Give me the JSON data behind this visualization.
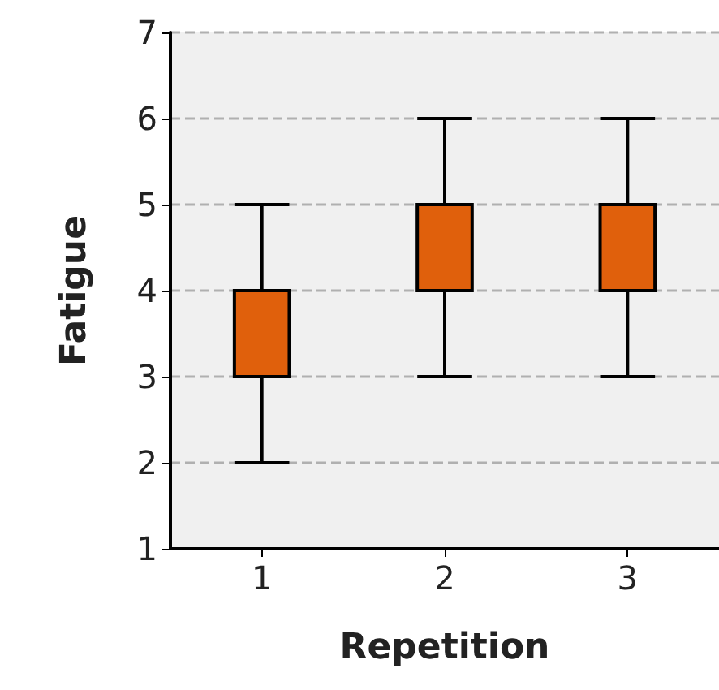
{
  "chart_data": {
    "type": "box",
    "xlabel": "Repetition",
    "ylabel": "Fatigue",
    "categories": [
      "1",
      "2",
      "3"
    ],
    "color": "#e0600c",
    "boxes": [
      {
        "low": 2,
        "q1": 3,
        "median": 3,
        "q3": 4,
        "high": 5
      },
      {
        "low": 3,
        "q1": 4,
        "median": 4,
        "q3": 5,
        "high": 6
      },
      {
        "low": 3,
        "q1": 4,
        "median": 5,
        "q3": 5,
        "high": 6
      }
    ],
    "ylim": [
      1,
      7
    ],
    "yticks": [
      1,
      2,
      3,
      4,
      5,
      6,
      7
    ],
    "grid": "y"
  }
}
